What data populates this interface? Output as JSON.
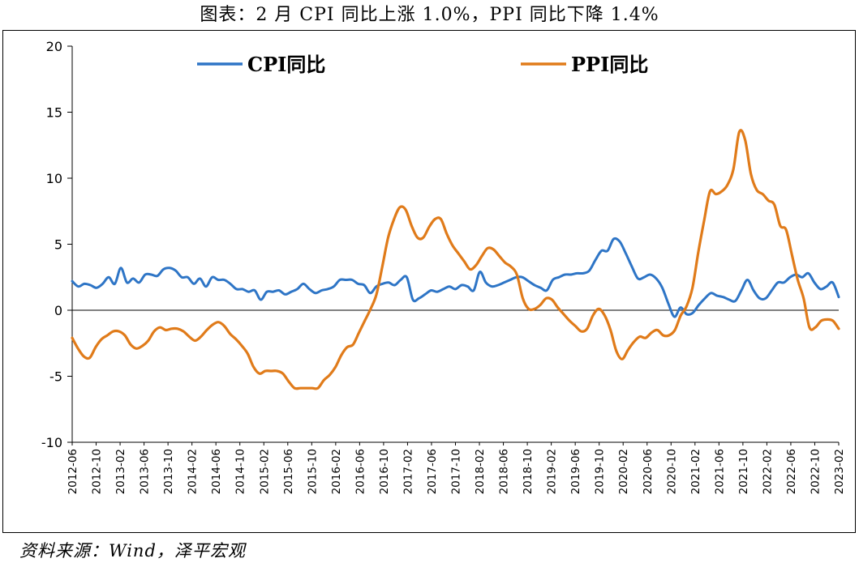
{
  "title": "图表：2 月 CPI 同比上涨 1.0%，PPI 同比下降 1.4%",
  "source": "资料来源：Wind，泽平宏观",
  "chart_data": {
    "type": "line",
    "ylim": [
      -10,
      20
    ],
    "yticks": [
      -10,
      -5,
      0,
      5,
      10,
      15,
      20
    ],
    "x_tick_labels": [
      "2012-06",
      "2012-10",
      "2013-02",
      "2013-06",
      "2013-10",
      "2014-02",
      "2014-06",
      "2014-10",
      "2015-02",
      "2015-06",
      "2015-10",
      "2016-02",
      "2016-06",
      "2016-10",
      "2017-02",
      "2017-06",
      "2017-10",
      "2018-02",
      "2018-06",
      "2018-10",
      "2019-02",
      "2019-06",
      "2019-10",
      "2020-02",
      "2020-06",
      "2020-10",
      "2021-02",
      "2021-06",
      "2021-10",
      "2022-02",
      "2022-06",
      "2022-10",
      "2023-02"
    ],
    "x_start": "2012-06",
    "x_end": "2023-02",
    "legend_position": "top",
    "grid": false,
    "series": [
      {
        "name": "CPI同比",
        "color": "#2E75C6",
        "values": [
          2.2,
          1.8,
          2.0,
          1.9,
          1.7,
          2.0,
          2.5,
          2.0,
          3.2,
          2.1,
          2.4,
          2.1,
          2.7,
          2.7,
          2.6,
          3.1,
          3.2,
          3.0,
          2.5,
          2.5,
          2.0,
          2.4,
          1.8,
          2.5,
          2.3,
          2.3,
          2.0,
          1.6,
          1.6,
          1.4,
          1.5,
          0.8,
          1.4,
          1.4,
          1.5,
          1.2,
          1.4,
          1.6,
          2.0,
          1.6,
          1.3,
          1.5,
          1.6,
          1.8,
          2.3,
          2.3,
          2.3,
          2.0,
          1.9,
          1.3,
          1.8,
          2.0,
          2.1,
          1.9,
          2.3,
          2.5,
          0.8,
          0.9,
          1.2,
          1.5,
          1.4,
          1.6,
          1.8,
          1.6,
          1.9,
          1.8,
          1.5,
          2.9,
          2.1,
          1.8,
          1.9,
          2.1,
          2.3,
          2.5,
          2.5,
          2.2,
          1.9,
          1.7,
          1.5,
          2.3,
          2.5,
          2.7,
          2.7,
          2.8,
          2.8,
          3.0,
          3.8,
          4.5,
          4.5,
          5.4,
          5.2,
          4.3,
          3.3,
          2.4,
          2.5,
          2.7,
          2.4,
          1.7,
          0.5,
          -0.5,
          0.2,
          -0.3,
          -0.2,
          0.4,
          0.9,
          1.3,
          1.1,
          1.0,
          0.8,
          0.7,
          1.5,
          2.3,
          1.5,
          0.9,
          0.9,
          1.5,
          2.1,
          2.1,
          2.5,
          2.7,
          2.5,
          2.8,
          2.1,
          1.6,
          1.8,
          2.1,
          1.0
        ]
      },
      {
        "name": "PPI同比",
        "color": "#E07B1A",
        "values": [
          -2.1,
          -2.9,
          -3.5,
          -3.6,
          -2.8,
          -2.2,
          -1.9,
          -1.6,
          -1.6,
          -1.9,
          -2.6,
          -2.9,
          -2.7,
          -2.3,
          -1.6,
          -1.3,
          -1.5,
          -1.4,
          -1.4,
          -1.6,
          -2.0,
          -2.3,
          -2.0,
          -1.5,
          -1.1,
          -0.9,
          -1.2,
          -1.8,
          -2.2,
          -2.7,
          -3.3,
          -4.3,
          -4.8,
          -4.6,
          -4.6,
          -4.6,
          -4.8,
          -5.4,
          -5.9,
          -5.9,
          -5.9,
          -5.9,
          -5.9,
          -5.3,
          -4.9,
          -4.3,
          -3.4,
          -2.8,
          -2.6,
          -1.7,
          -0.8,
          0.1,
          1.2,
          3.3,
          5.5,
          6.9,
          7.8,
          7.6,
          6.4,
          5.5,
          5.5,
          6.3,
          6.9,
          6.9,
          5.8,
          4.9,
          4.3,
          3.7,
          3.1,
          3.4,
          4.1,
          4.7,
          4.6,
          4.1,
          3.6,
          3.3,
          2.7,
          0.9,
          0.1,
          0.1,
          0.4,
          0.9,
          0.8,
          0.2,
          -0.3,
          -0.8,
          -1.2,
          -1.6,
          -1.4,
          -0.4,
          0.1,
          -0.4,
          -1.5,
          -3.1,
          -3.7,
          -3.0,
          -2.4,
          -2.0,
          -2.1,
          -1.7,
          -1.5,
          -1.9,
          -1.9,
          -1.5,
          -0.4,
          0.3,
          1.7,
          4.4,
          6.8,
          9.0,
          8.8,
          9.0,
          9.5,
          10.7,
          13.5,
          12.9,
          10.3,
          9.1,
          8.8,
          8.3,
          8.0,
          6.4,
          6.1,
          4.2,
          2.3,
          0.9,
          -1.3,
          -1.3,
          -0.8,
          -0.7,
          -0.8,
          -1.4
        ]
      }
    ]
  }
}
